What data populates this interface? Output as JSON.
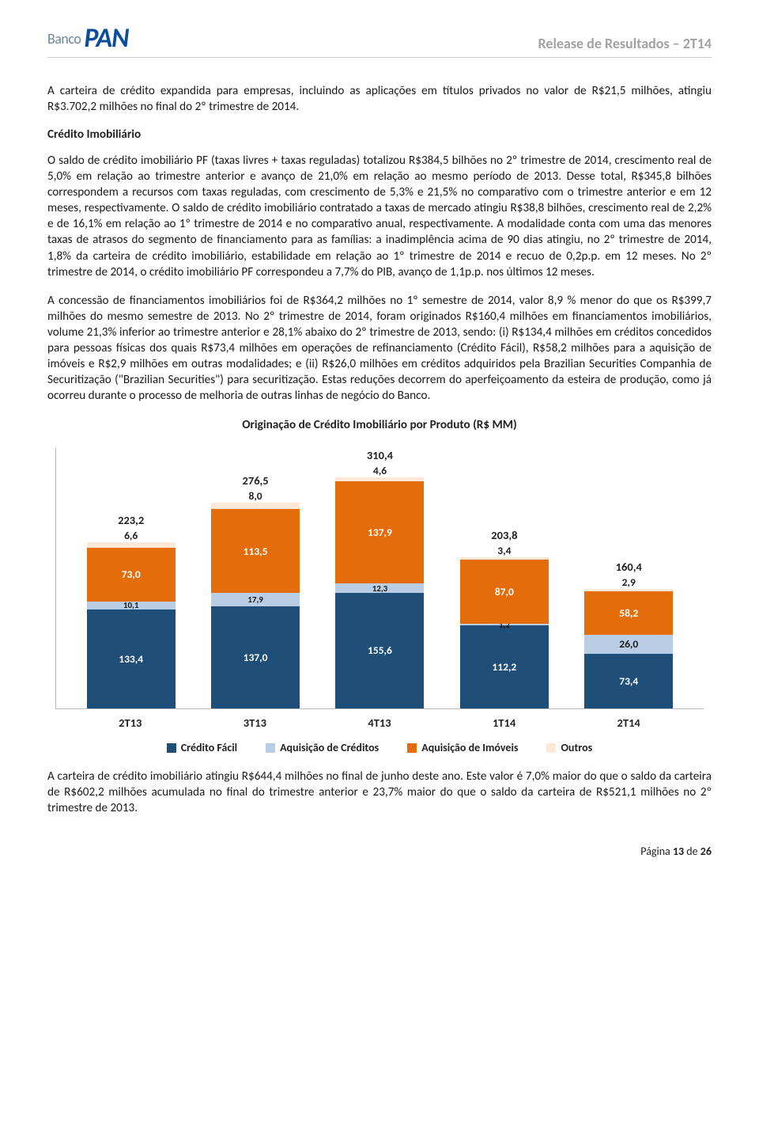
{
  "header": {
    "logo_banco": "Banco",
    "logo_pan": "PAN",
    "release": "Release de Resultados – 2T14"
  },
  "paragraphs": {
    "p1": "A carteira de crédito expandida para empresas, incluindo as aplicações em títulos privados no valor de R$21,5 milhões, atingiu R$3.702,2 milhões no final do 2º trimestre de 2014.",
    "section_title": "Crédito Imobiliário",
    "p2": "O saldo de crédito imobiliário PF (taxas livres + taxas reguladas) totalizou R$384,5 bilhões no 2º trimestre de 2014, crescimento real de 5,0% em relação ao trimestre anterior e avanço de 21,0% em relação ao mesmo período de 2013. Desse total, R$345,8 bilhões correspondem a recursos com taxas reguladas, com crescimento de 5,3% e 21,5% no comparativo com o trimestre anterior e em 12 meses, respectivamente. O saldo de crédito imobiliário contratado a taxas de mercado atingiu R$38,8 bilhões, crescimento real de 2,2% e de 16,1% em relação ao 1º trimestre de 2014 e no comparativo anual, respectivamente. A modalidade conta com uma das menores taxas de atrasos do segmento de financiamento para as famílias: a inadimplência acima de 90 dias atingiu, no 2º trimestre de 2014, 1,8% da carteira de crédito imobiliário, estabilidade em relação ao 1º trimestre de 2014 e recuo de 0,2p.p. em 12 meses. No 2º trimestre de 2014, o crédito imobiliário PF correspondeu a 7,7% do PIB, avanço de 1,1p.p. nos últimos 12 meses.",
    "p3": "A concessão de financiamentos imobiliários foi de R$364,2 milhões no 1º semestre de 2014, valor 8,9 % menor do que os R$399,7 milhões do mesmo semestre de 2013. No 2º trimestre de 2014, foram originados R$160,4 milhões em financiamentos imobiliários, volume 21,3% inferior ao trimestre anterior e 28,1% abaixo do 2º trimestre de 2013, sendo: (i) R$134,4 milhões em créditos concedidos para pessoas físicas dos quais R$73,4 milhões em operações de refinanciamento (Crédito Fácil), R$58,2 milhões para a aquisição de imóveis e R$2,9 milhões em outras modalidades; e (ii) R$26,0 milhões em créditos adquiridos pela Brazilian Securities Companhia de Securitização (\"Brazilian Securities\") para securitização. Estas reduções decorrem do aperfeiçoamento da esteira de produção, como já ocorreu durante o processo de melhoria de outras linhas de negócio do Banco.",
    "p4": "A carteira de crédito imobiliário atingiu R$644,4 milhões no final de junho deste ano. Este valor é 7,0% maior do que o saldo da carteira de R$602,2 milhões acumulada no final do trimestre anterior e 23,7% maior do que o saldo da carteira de R$521,1 milhões no 2º trimestre de 2013."
  },
  "chart": {
    "title": "Originação de Crédito Imobiliário por Produto (R$ MM)",
    "ymax": 330,
    "scale": 0.94,
    "colors": {
      "facil": "#1f4e79",
      "aquisicao": "#b9cde5",
      "imoveis": "#e46c0a",
      "outros": "#fce8d6"
    },
    "categories": [
      "2T13",
      "3T13",
      "4T13",
      "1T14",
      "2T14"
    ],
    "legend": [
      {
        "key": "facil",
        "label": "Crédito Fácil"
      },
      {
        "key": "aquisicao",
        "label": "Aquisição de Créditos"
      },
      {
        "key": "imoveis",
        "label": "Aquisição de Imóveis"
      },
      {
        "key": "outros",
        "label": "Outros"
      }
    ],
    "bars": [
      {
        "total": "223,2",
        "segments": [
          {
            "key": "facil",
            "value": 133.4,
            "label": "133,4"
          },
          {
            "key": "aquisicao",
            "value": 10.1,
            "label": "10,1"
          },
          {
            "key": "imoveis",
            "value": 73.0,
            "label": "73,0"
          },
          {
            "key": "outros",
            "value": 6.6,
            "label": "6,6"
          }
        ]
      },
      {
        "total": "276,5",
        "segments": [
          {
            "key": "facil",
            "value": 137.0,
            "label": "137,0"
          },
          {
            "key": "aquisicao",
            "value": 17.9,
            "label": "17,9"
          },
          {
            "key": "imoveis",
            "value": 113.5,
            "label": "113,5"
          },
          {
            "key": "outros",
            "value": 8.0,
            "label": "8,0"
          }
        ]
      },
      {
        "total": "310,4",
        "segments": [
          {
            "key": "facil",
            "value": 155.6,
            "label": "155,6"
          },
          {
            "key": "aquisicao",
            "value": 12.3,
            "label": "12,3"
          },
          {
            "key": "imoveis",
            "value": 137.9,
            "label": "137,9"
          },
          {
            "key": "outros",
            "value": 4.6,
            "label": "4,6"
          }
        ]
      },
      {
        "total": "203,8",
        "segments": [
          {
            "key": "facil",
            "value": 112.2,
            "label": "112,2"
          },
          {
            "key": "aquisicao",
            "value": 1.2,
            "label": "1,2"
          },
          {
            "key": "imoveis",
            "value": 87.0,
            "label": "87,0"
          },
          {
            "key": "outros",
            "value": 3.4,
            "label": "3,4"
          }
        ]
      },
      {
        "total": "160,4",
        "segments": [
          {
            "key": "facil",
            "value": 73.4,
            "label": "73,4"
          },
          {
            "key": "aquisicao",
            "value": 26.0,
            "label": "26,0"
          },
          {
            "key": "imoveis",
            "value": 58.2,
            "label": "58,2"
          },
          {
            "key": "outros",
            "value": 2.9,
            "label": "2,9"
          }
        ]
      }
    ]
  },
  "footer": {
    "prefix": "Página ",
    "page": "13",
    "of": " de ",
    "total": "26"
  }
}
